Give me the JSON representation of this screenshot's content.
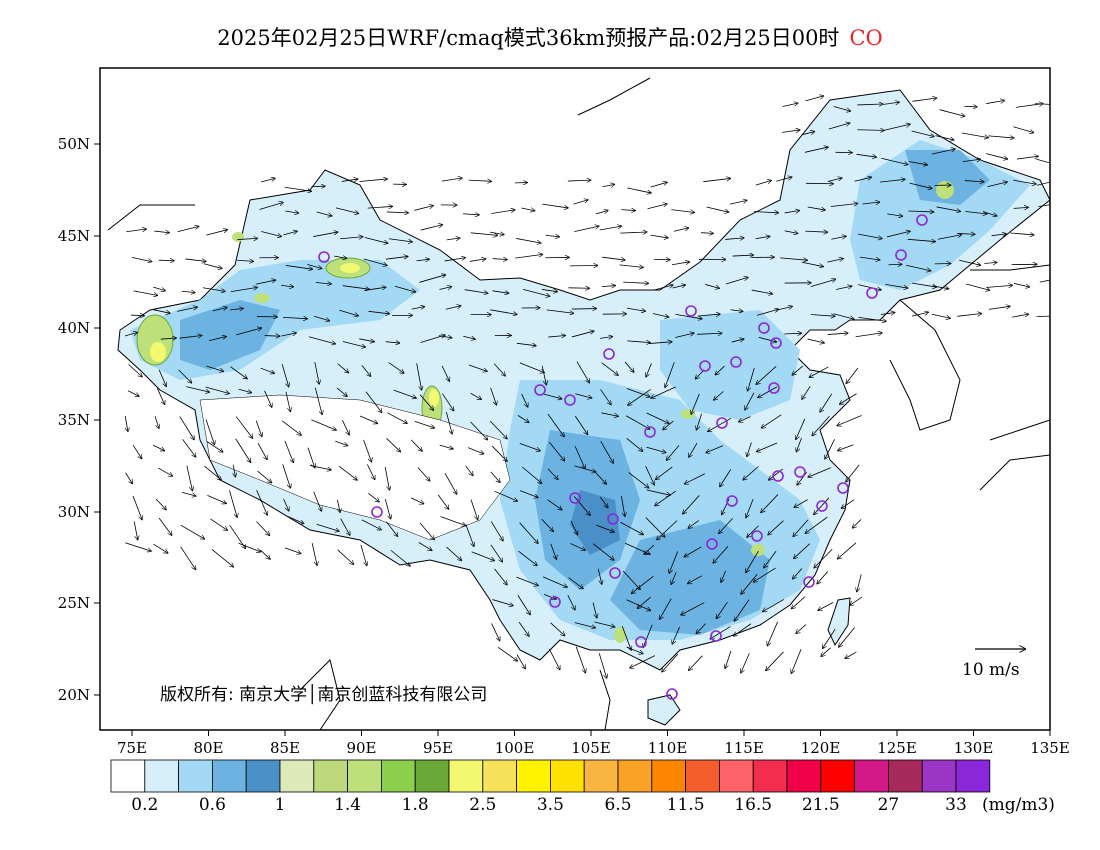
{
  "title": {
    "text": "2025年02月25日WRF/cmaq模式36km预报产品:02月25日00时",
    "species": "CO",
    "species_color": "#e8262a"
  },
  "axes": {
    "lat_labels": [
      "50N",
      "45N",
      "40N",
      "35N",
      "30N",
      "25N",
      "20N"
    ],
    "lon_labels": [
      "75E",
      "80E",
      "85E",
      "90E",
      "95E",
      "100E",
      "105E",
      "110E",
      "115E",
      "120E",
      "125E",
      "130E",
      "135E"
    ]
  },
  "copyright": "版权所有: 南京大学│南京创蓝科技有限公司",
  "wind_scale_label": "10 m/s",
  "colorbar": {
    "colors": [
      "#ffffff",
      "#d6effb",
      "#a3d9f5",
      "#6cb3e2",
      "#4a8fc8",
      "#dde9b8",
      "#bfd87c",
      "#bde07a",
      "#8ccf4c",
      "#6aa839",
      "#f2f971",
      "#f5e25a",
      "#fff200",
      "#ffe100",
      "#f9b540",
      "#faa227",
      "#ff8600",
      "#f25f2c",
      "#fe6369",
      "#f22d4e",
      "#f0004b",
      "#ff0000",
      "#d51888",
      "#a8295c",
      "#9b35c5",
      "#8b27d9"
    ],
    "labels": [
      "0.2",
      "0.6",
      "1",
      "1.4",
      "1.8",
      "2.5",
      "3.5",
      "6.5",
      "11.5",
      "16.5",
      "21.5",
      "27",
      "33"
    ],
    "units": "(mg/m3)"
  },
  "station_color": "#8b27d9"
}
